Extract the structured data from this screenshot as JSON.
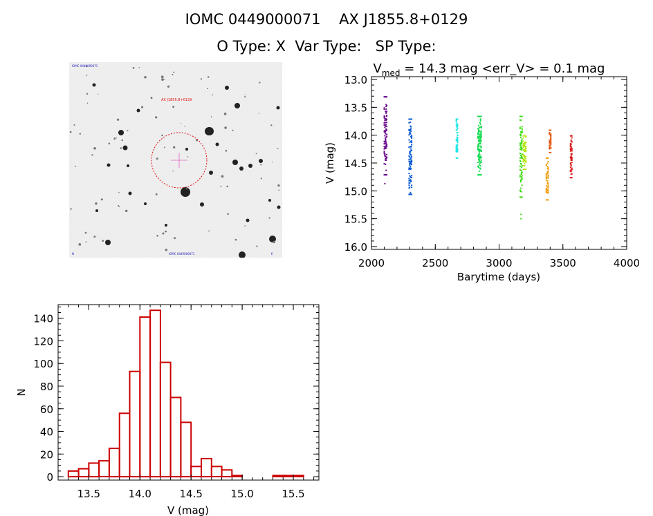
{
  "header": {
    "object_id": "IOMC 0449000071",
    "object_name": "AX J1855.8+0129",
    "o_type": "O Type: X",
    "var_type": "Var Type:",
    "sp_type": "SP Type:"
  },
  "sky_image": {
    "top_left_label": "IOMC 0449000071",
    "marker_label": "AX J1855.8+0129",
    "bottom_left_label": "N",
    "bottom_center_label": "IOMC 0449000071",
    "bottom_right_label": "E"
  },
  "chart_data": [
    {
      "type": "scatter",
      "title_prefix": "V",
      "title_sub": "med",
      "title_rest": " = 14.3 mag <err_V> = 0.1 mag",
      "xlabel": "Barytime (days)",
      "ylabel": "V (mag)",
      "xlim": [
        2000,
        4000
      ],
      "ylim": [
        16.05,
        12.95
      ],
      "y_inverted": true,
      "xticks": [
        2000,
        2500,
        3000,
        3500,
        4000
      ],
      "xtick_labels": [
        "2000",
        "2500",
        "3000",
        "3500",
        "4000"
      ],
      "yticks": [
        13.0,
        13.5,
        14.0,
        14.5,
        15.0,
        15.5,
        16.0
      ],
      "ytick_labels": [
        "13.0",
        "13.5",
        "14.0",
        "14.5",
        "15.0",
        "15.5",
        "16.0"
      ],
      "groups": [
        {
          "color": "#6a0a8c",
          "x": [
            2100,
            2105,
            2110,
            2115,
            2120
          ],
          "v_min": 13.3,
          "v_max": 14.7,
          "extra": [
            [
              2105,
              14.87
            ]
          ]
        },
        {
          "color": "#0a5ad2",
          "x": [
            2295,
            2300,
            2305,
            2310,
            2315
          ],
          "v_min": 13.7,
          "v_max": 15.05,
          "extra": []
        },
        {
          "color": "#1ee6e6",
          "x": [
            2665,
            2670,
            2675
          ],
          "v_min": 13.7,
          "v_max": 14.4,
          "extra": []
        },
        {
          "color": "#14dc50",
          "x": [
            2835,
            2840,
            2845,
            2850,
            2855,
            2860
          ],
          "v_min": 13.65,
          "v_max": 14.7,
          "extra": []
        },
        {
          "color": "#3cdc14",
          "x": [
            3165,
            3170,
            3175,
            3180
          ],
          "v_min": 13.65,
          "v_max": 15.1,
          "extra": [
            [
              3172,
              15.42
            ],
            [
              3172,
              15.5
            ]
          ]
        },
        {
          "color": "#b4e614",
          "x": [
            3190,
            3200,
            3210
          ],
          "v_min": 14.0,
          "v_max": 14.6,
          "extra": []
        },
        {
          "color": "#f0a014",
          "x": [
            3370,
            3380,
            3385
          ],
          "v_min": 14.4,
          "v_max": 15.15,
          "extra": []
        },
        {
          "color": "#e65a14",
          "x": [
            3395,
            3405
          ],
          "v_min": 13.9,
          "v_max": 14.3,
          "extra": []
        },
        {
          "color": "#dc1e1e",
          "x": [
            3560,
            3565,
            3570
          ],
          "v_min": 14.0,
          "v_max": 14.75,
          "extra": []
        }
      ]
    },
    {
      "type": "bar",
      "histogram": true,
      "xlabel": "V (mag)",
      "ylabel": "N",
      "xlim": [
        13.2,
        15.75
      ],
      "ylim": [
        -3,
        152
      ],
      "bar_color": "#cc0000",
      "xticks": [
        13.5,
        14.0,
        14.5,
        15.0,
        15.5
      ],
      "xtick_labels": [
        "13.5",
        "14.0",
        "14.5",
        "15.0",
        "15.5"
      ],
      "yticks": [
        0,
        20,
        40,
        60,
        80,
        100,
        120,
        140
      ],
      "ytick_labels": [
        "0",
        "20",
        "40",
        "60",
        "80",
        "100",
        "120",
        "140"
      ],
      "bin_width": 0.1,
      "bin_starts": [
        13.3,
        13.4,
        13.5,
        13.6,
        13.7,
        13.8,
        13.9,
        14.0,
        14.1,
        14.2,
        14.3,
        14.4,
        14.5,
        14.6,
        14.7,
        14.8,
        14.9,
        15.0,
        15.1,
        15.2,
        15.3,
        15.4,
        15.5
      ],
      "values": [
        5,
        7,
        12,
        14,
        25,
        56,
        93,
        141,
        147,
        101,
        70,
        48,
        9,
        16,
        9,
        6,
        1,
        0,
        0,
        0,
        1,
        1,
        1
      ]
    }
  ]
}
